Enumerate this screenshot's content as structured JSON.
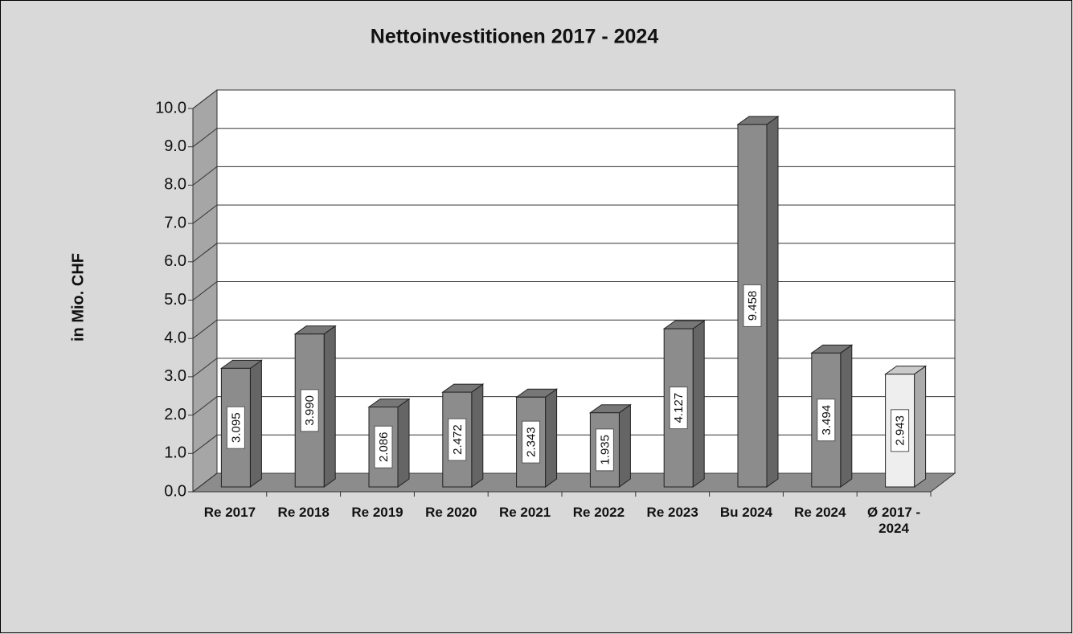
{
  "chart_data": {
    "type": "bar3d",
    "title": "Nettoinvestitionen 2017 - 2024",
    "y_label": "in Mio. CHF",
    "categories": [
      "Re 2017",
      "Re 2018",
      "Re 2019",
      "Re 2020",
      "Re 2021",
      "Re 2022",
      "Re 2023",
      "Bu 2024",
      "Re 2024",
      "Ø 2017 - 2024"
    ],
    "values": [
      3.095,
      3.99,
      2.086,
      2.472,
      2.343,
      1.935,
      4.127,
      9.458,
      3.494,
      2.943
    ],
    "value_labels": [
      "3.095",
      "3.990",
      "2.086",
      "2.472",
      "2.343",
      "1.935",
      "4.127",
      "9.458",
      "3.494",
      "2.943"
    ],
    "colors": [
      "#8c8c8c",
      "#8c8c8c",
      "#8c8c8c",
      "#8c8c8c",
      "#8c8c8c",
      "#8c8c8c",
      "#8c8c8c",
      "#8c8c8c",
      "#8c8c8c",
      "#eeeeee"
    ],
    "ylim": [
      0,
      10
    ],
    "yticks": [
      {
        "value": 0,
        "label": "0.0"
      },
      {
        "value": 1,
        "label": "1.0"
      },
      {
        "value": 2,
        "label": "2.0"
      },
      {
        "value": 3,
        "label": "3.0"
      },
      {
        "value": 4,
        "label": "4.0"
      },
      {
        "value": 5,
        "label": "5.0"
      },
      {
        "value": 6,
        "label": "6.0"
      },
      {
        "value": 7,
        "label": "7.0"
      },
      {
        "value": 8,
        "label": "8.0"
      },
      {
        "value": 9,
        "label": "9.0"
      },
      {
        "value": 10,
        "label": "10.0"
      }
    ],
    "grid": true
  }
}
